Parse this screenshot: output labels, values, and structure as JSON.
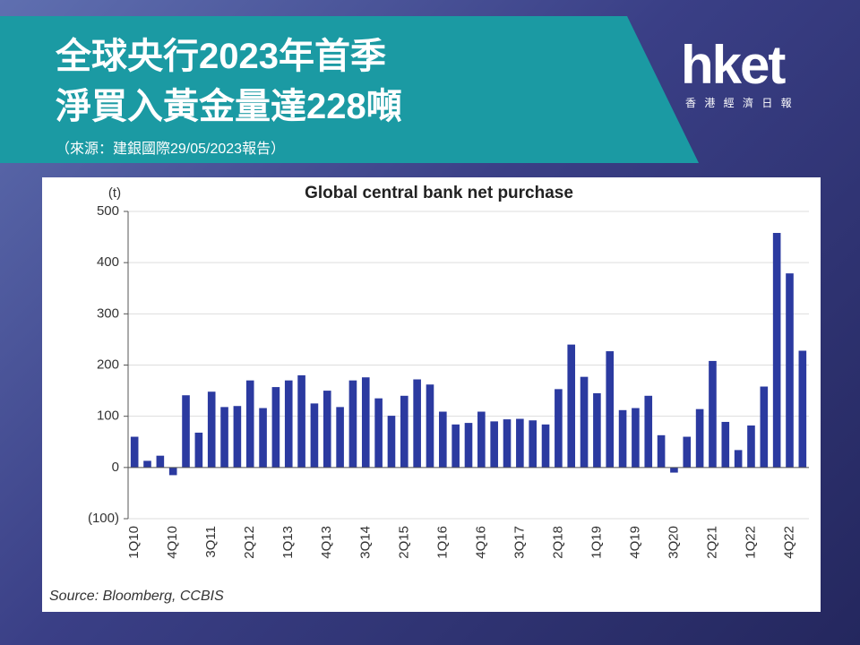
{
  "header": {
    "title_lines": [
      "全球央行2023年首季",
      "淨買入黃金量達228噸"
    ],
    "source": "（來源：建銀國際29/05/2023報告）"
  },
  "logo": {
    "name": "hket",
    "subtitle": "香 港 經 濟 日 報"
  },
  "chart_data": {
    "type": "bar",
    "title": "Global central bank net purchase",
    "y_unit": "(t)",
    "note": "Source: Bloomberg, CCBIS",
    "categories": [
      "1Q10",
      null,
      null,
      "4Q10",
      null,
      null,
      "3Q11",
      null,
      null,
      "2Q12",
      null,
      null,
      "1Q13",
      null,
      null,
      "4Q13",
      null,
      null,
      "3Q14",
      null,
      null,
      "2Q15",
      null,
      null,
      "1Q16",
      null,
      null,
      "4Q16",
      null,
      null,
      "3Q17",
      null,
      null,
      "2Q18",
      null,
      null,
      "1Q19",
      null,
      null,
      "4Q19",
      null,
      null,
      "3Q20",
      null,
      null,
      "2Q21",
      null,
      null,
      "1Q22",
      null,
      null,
      "4Q22",
      null
    ],
    "values": [
      60,
      13,
      23,
      -15,
      141,
      68,
      148,
      118,
      120,
      170,
      116,
      157,
      170,
      180,
      125,
      150,
      118,
      170,
      176,
      135,
      101,
      140,
      172,
      162,
      109,
      84,
      87,
      109,
      90,
      94,
      95,
      92,
      84,
      153,
      240,
      177,
      145,
      227,
      112,
      116,
      140,
      63,
      -10,
      60,
      114,
      208,
      89,
      34,
      82,
      158,
      458,
      379,
      228
    ],
    "color": "#2b3aa0",
    "ylim": [
      -100,
      500
    ],
    "yticks": [
      {
        "value": -100,
        "label": "(100)"
      },
      0,
      100,
      200,
      300,
      400,
      500
    ],
    "grid": true
  }
}
